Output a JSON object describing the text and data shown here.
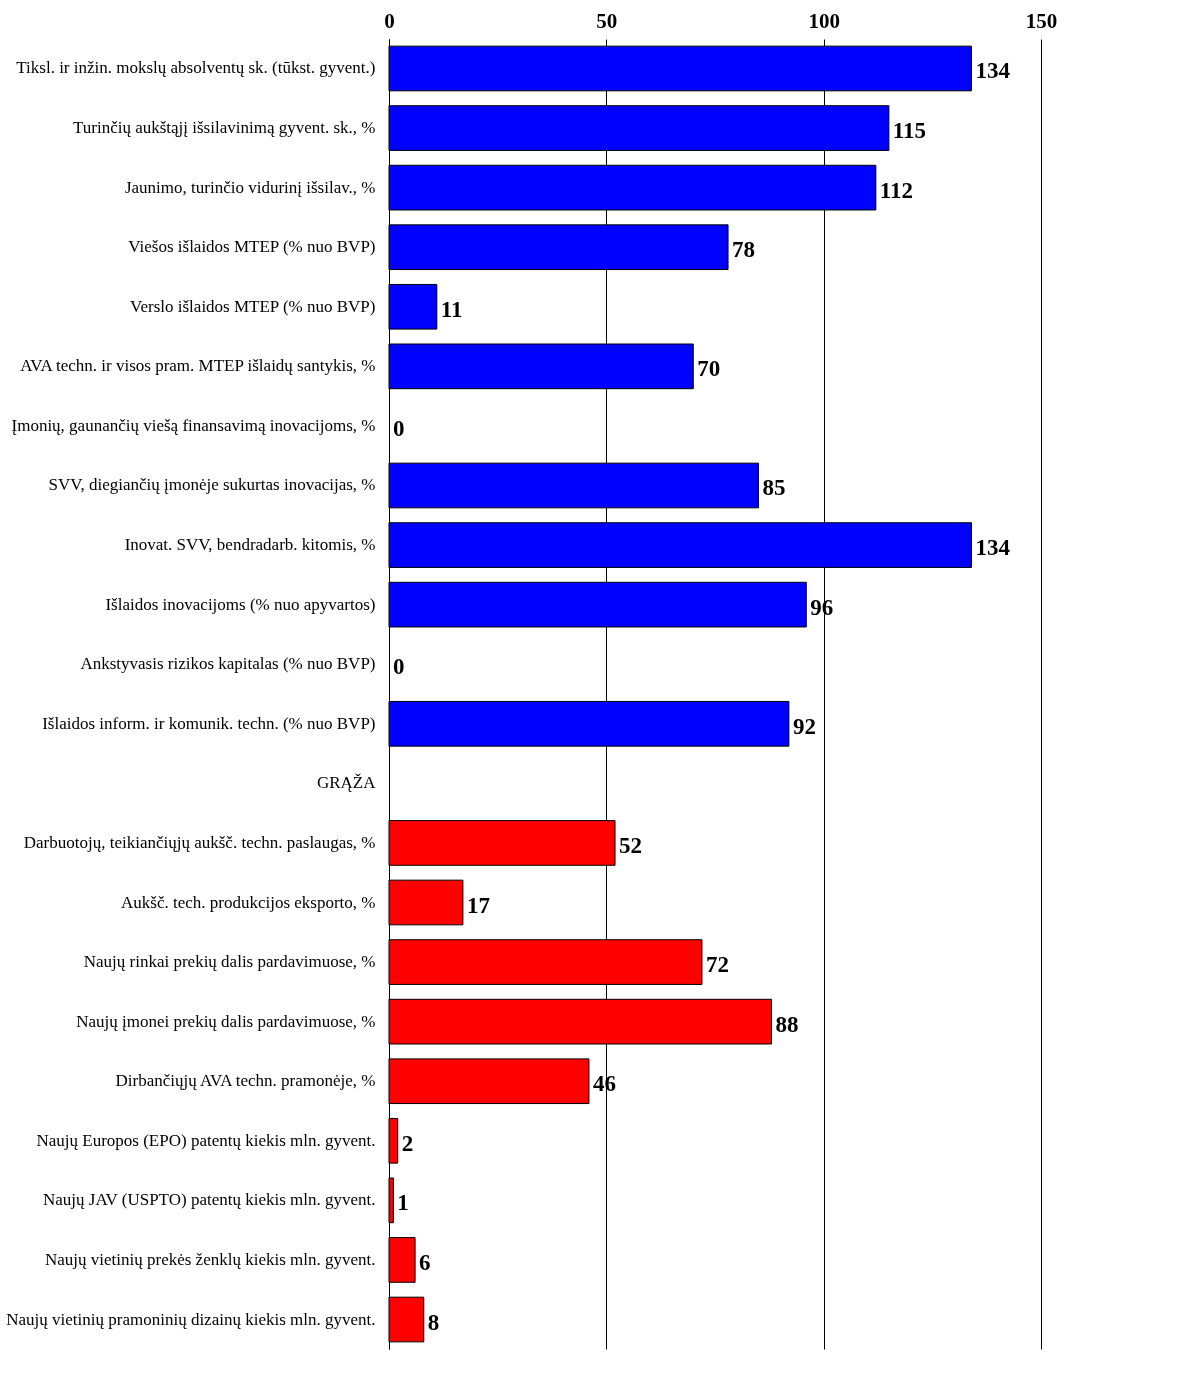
{
  "chart_data": {
    "type": "bar",
    "orientation": "horizontal",
    "categories": [
      "Tiksl. ir inžin. mokslų absolventų sk. (tūkst. gyvent.)",
      "Turinčių aukštąjį išsilavinimą gyvent. sk., %",
      "Jaunimo, turinčio vidurinį išsilav., %",
      "Viešos išlaidos MTEP (% nuo BVP)",
      "Verslo išlaidos MTEP (% nuo BVP)",
      "AVA techn. ir visos pram. MTEP išlaidų santykis, %",
      "Įmonių, gaunančių viešą finansavimą inovacijoms, %",
      "SVV, diegiančių įmonėje sukurtas inovacijas, %",
      "Inovat. SVV, bendradarb. kitomis, %",
      "Išlaidos inovacijoms (% nuo apyvartos)",
      "Ankstyvasis rizikos kapitalas (% nuo BVP)",
      "Išlaidos inform. ir komunik. techn. (% nuo BVP)",
      "GRĄŽA",
      "Darbuotojų, teikiančiųjų aukšč. techn. paslaugas, %",
      "Aukšč. tech. produkcijos eksporto, %",
      "Naujų rinkai prekių dalis pardavimuose, %",
      "Naujų įmonei prekių dalis pardavimuose, %",
      "Dirbančiųjų AVA techn. pramonėje, %",
      "Naujų Europos (EPO) patentų kiekis mln. gyvent.",
      "Naujų JAV (USPTO) patentų kiekis mln. gyvent.",
      "Naujų vietinių prekės ženklų kiekis mln. gyvent.",
      "Naujų vietinių pramoninių dizainų kiekis mln. gyvent."
    ],
    "values": [
      134,
      115,
      112,
      78,
      11,
      70,
      0,
      85,
      134,
      96,
      0,
      92,
      null,
      52,
      17,
      72,
      88,
      46,
      2,
      1,
      6,
      8
    ],
    "colors": [
      "#0000ff",
      "#0000ff",
      "#0000ff",
      "#0000ff",
      "#0000ff",
      "#0000ff",
      "#0000ff",
      "#0000ff",
      "#0000ff",
      "#0000ff",
      "#0000ff",
      "#0000ff",
      null,
      "#ff0000",
      "#ff0000",
      "#ff0000",
      "#ff0000",
      "#ff0000",
      "#ff0000",
      "#ff0000",
      "#ff0000",
      "#ff0000"
    ],
    "xlim": [
      0,
      150
    ],
    "xticks": [
      0,
      50,
      100,
      150
    ],
    "grid": "x",
    "data_labels": true
  }
}
